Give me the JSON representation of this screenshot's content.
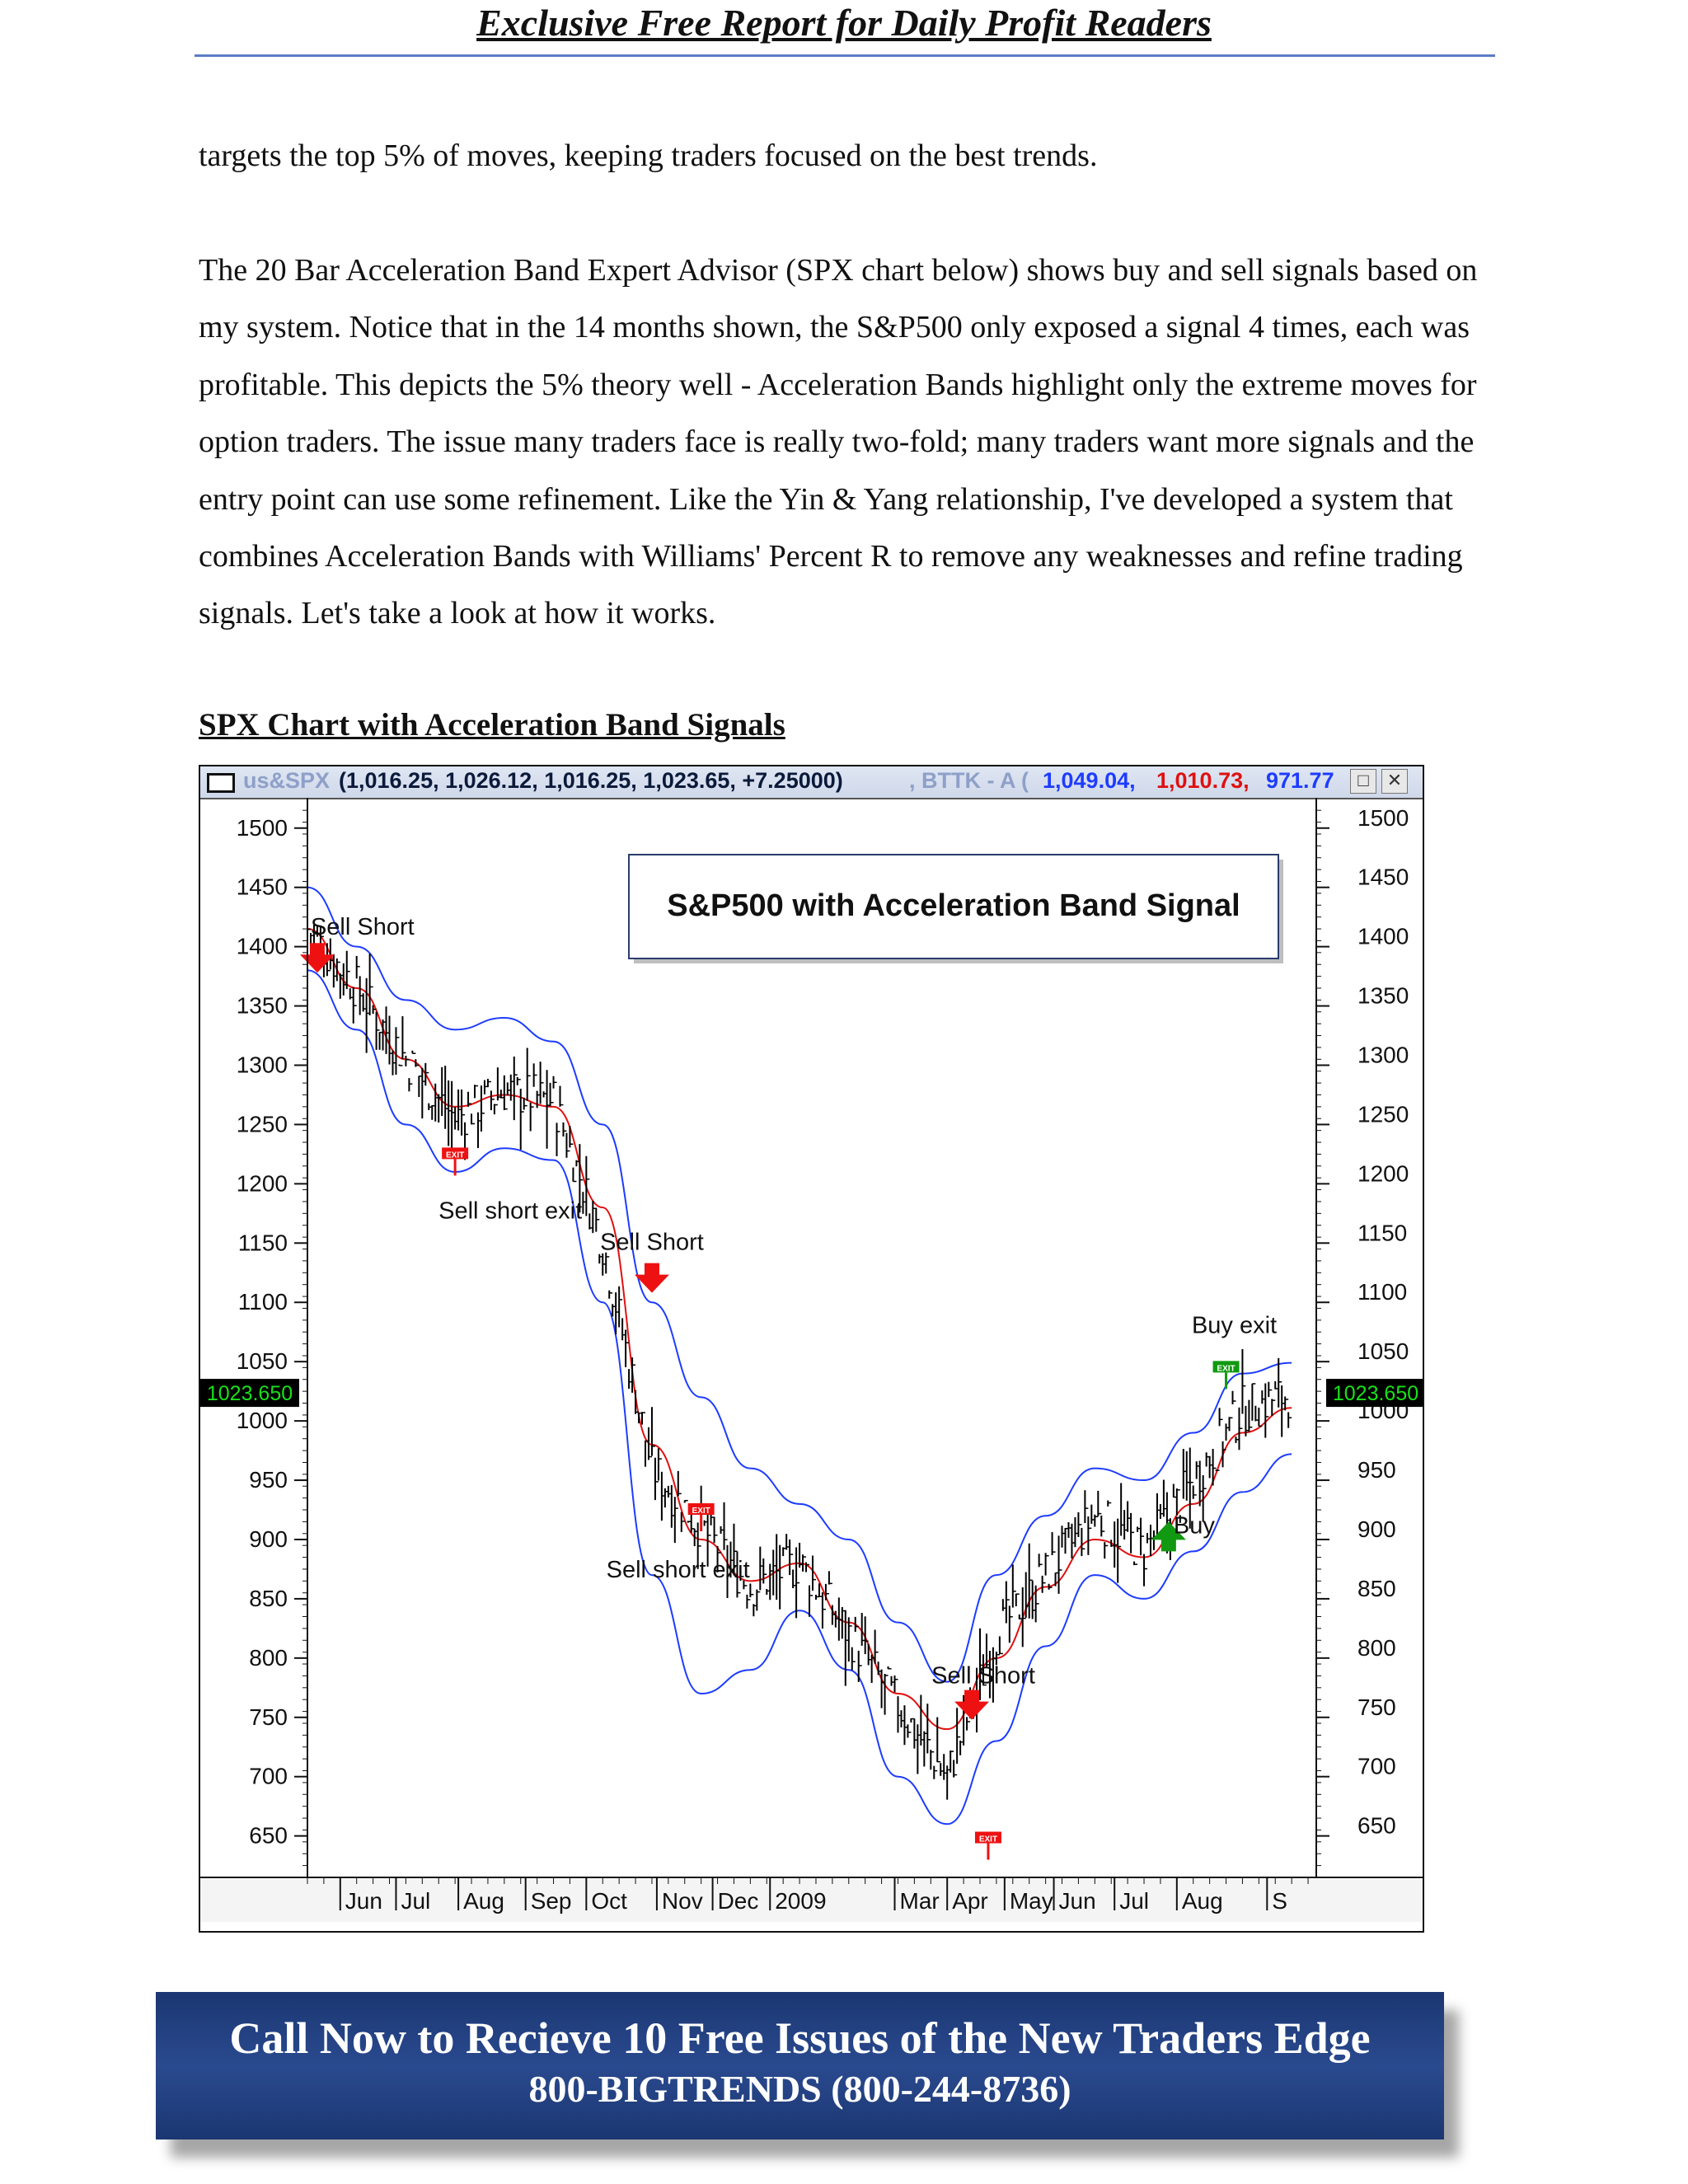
{
  "header": {
    "title": "Exclusive Free Report for Daily Profit Readers"
  },
  "body": {
    "paragraph1": "targets the top 5% of moves, keeping traders focused on the best trends.",
    "paragraph2": "The 20 Bar Acceleration Band Expert Advisor (SPX chart below) shows buy and sell signals based on my system. Notice that in the 14 months shown, the S&P500 only exposed a signal 4 times, each was profitable. This depicts the 5% theory well - Acceleration Bands highlight only the extreme moves for option traders. The issue many traders face is really two-fold; many traders want more signals and the entry point can use some refinement. Like the Yin & Yang relationship, I've developed a system that combines Acceleration Bands with Williams' Percent R to remove any weaknesses and refine trading signals. Let's take a look at how it works."
  },
  "chart_section": {
    "heading": "SPX Chart with Acceleration Band Signals"
  },
  "chart_window": {
    "symbol": "us&SPX",
    "ohlc_text": "(1,016.25, 1,026.12, 1,016.25, 1,023.65, +7.25000)",
    "indicator_label": ", BTTK - A (",
    "band_upper": "1,049.04,",
    "band_mid": "1,010.73,",
    "band_lower": "971.77",
    "colors": {
      "upper": "#1e3cff",
      "mid": "#e01010",
      "lower": "#1e3cff",
      "title_muted": "#8ea0c8"
    }
  },
  "chart_data": {
    "type": "line",
    "title": "S&P500 with Acceleration Band Signal",
    "x_tick_labels": [
      "Jun",
      "Jul",
      "Aug",
      "Sep",
      "Oct",
      "Nov",
      "Dec",
      "2009",
      "Mar",
      "Apr",
      "May",
      "Jun",
      "Jul",
      "Aug",
      "S"
    ],
    "y_ticks": [
      1500,
      1450,
      1400,
      1350,
      1300,
      1250,
      1200,
      1150,
      1100,
      1050,
      1000,
      950,
      900,
      850,
      800,
      750,
      700,
      650
    ],
    "ylim": [
      615,
      1520
    ],
    "last_price_label": "1023.650",
    "last_price": 1023.65,
    "x": [
      0,
      3,
      6,
      9,
      12,
      15,
      18,
      21,
      24,
      27,
      30,
      33,
      36,
      39,
      42,
      45,
      48,
      51,
      54,
      57,
      60
    ],
    "series": [
      {
        "name": "",
        "role": "price",
        "color": "#000000",
        "values": [
          1415,
          1365,
          1305,
          1255,
          1278,
          1270,
          1150,
          960,
          910,
          860,
          880,
          820,
          760,
          700,
          820,
          870,
          920,
          890,
          950,
          1010,
          1023
        ]
      },
      {
        "name": "",
        "role": "upper-band",
        "color": "#1e3cff",
        "values": [
          1450,
          1400,
          1355,
          1330,
          1340,
          1320,
          1250,
          1100,
          1020,
          960,
          930,
          900,
          830,
          780,
          870,
          920,
          960,
          950,
          990,
          1040,
          1049
        ]
      },
      {
        "name": "",
        "role": "middle-band",
        "color": "#e01010",
        "values": [
          1415,
          1365,
          1305,
          1265,
          1275,
          1265,
          1180,
          980,
          900,
          865,
          880,
          830,
          770,
          740,
          800,
          860,
          900,
          885,
          930,
          990,
          1011
        ]
      },
      {
        "name": "",
        "role": "lower-band",
        "color": "#1e3cff",
        "values": [
          1380,
          1330,
          1250,
          1210,
          1230,
          1220,
          1100,
          870,
          770,
          790,
          840,
          790,
          700,
          660,
          730,
          810,
          870,
          850,
          890,
          940,
          972
        ]
      }
    ],
    "annotations": [
      {
        "text": "Sell Short",
        "x": 0.6,
        "y": 1385,
        "marker": "red-down-arrow"
      },
      {
        "text": "Sell short exit",
        "x": 9,
        "y": 1225,
        "marker": "exit-red"
      },
      {
        "text": "Sell Short",
        "x": 21,
        "y": 1115,
        "marker": "red-down-arrow"
      },
      {
        "text": "Sell short exit",
        "x": 24,
        "y": 925,
        "marker": "exit-red"
      },
      {
        "text": "Sell Short",
        "x": 40.5,
        "y": 755,
        "marker": "red-down-arrow"
      },
      {
        "text": "Sell short exit",
        "x": 41.5,
        "y": 648,
        "marker": "exit-red"
      },
      {
        "text": "Buy",
        "x": 52.5,
        "y": 915,
        "marker": "green-up-arrow"
      },
      {
        "text": "Buy exit",
        "x": 56,
        "y": 1045,
        "marker": "exit-green"
      }
    ],
    "exit_badge_text": "EXIT"
  },
  "footer": {
    "line1": "Call Now to Recieve 10 Free Issues of the New Traders Edge",
    "line2": "800-BIGTRENDS (800-244-8736)"
  }
}
